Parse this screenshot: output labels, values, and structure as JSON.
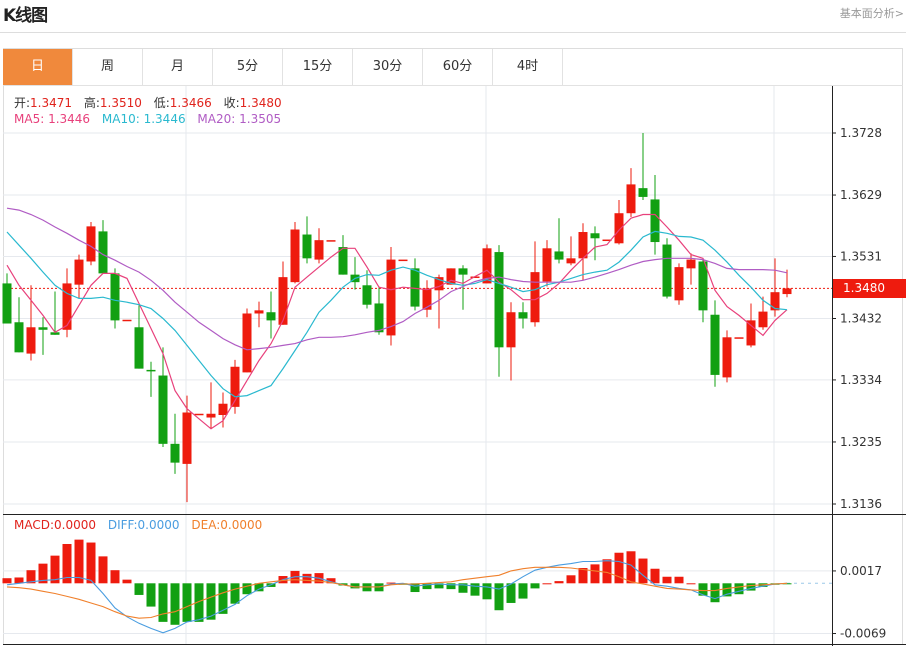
{
  "header": {
    "title": "K线图",
    "link": "基本面分析>"
  },
  "tabs": [
    {
      "label": "日",
      "active": true
    },
    {
      "label": "周"
    },
    {
      "label": "月"
    },
    {
      "label": "5分"
    },
    {
      "label": "15分"
    },
    {
      "label": "30分"
    },
    {
      "label": "60分"
    },
    {
      "label": "4时"
    }
  ],
  "legend": {
    "open_label": "开:",
    "open": "1.3471",
    "high_label": "高:",
    "high": "1.3510",
    "low_label": "低:",
    "low": "1.3466",
    "close_label": "收:",
    "close": "1.3480",
    "ma5_label": "MA5: ",
    "ma5": "1.3446",
    "ma10_label": "MA10: ",
    "ma10": "1.3446",
    "ma20_label": "MA20: ",
    "ma20": "1.3505"
  },
  "macd_legend": {
    "macd_label": "MACD:",
    "macd": "0.0000",
    "diff_label": "DIFF:",
    "diff": "0.0000",
    "dea_label": "DEA:",
    "dea": "0.0000"
  },
  "current_price": "1.3480",
  "colors": {
    "up": "#ee1b0e",
    "down": "#12a012",
    "ma5": "#e8417c",
    "ma10": "#2ab9cf",
    "ma20": "#b05cc4",
    "diff": "#4a9de0",
    "dea": "#f0802c",
    "active_tab": "#f0893c"
  },
  "chart_data": [
    {
      "type": "candlestick",
      "ylim": [
        1.3136,
        1.3728
      ],
      "yticks": [
        "1.3728",
        "1.3629",
        "1.3531",
        "1.3432",
        "1.3334",
        "1.3235",
        "1.3136"
      ],
      "grid": true,
      "ohlc": [
        [
          1.3488,
          1.3504,
          1.3424,
          1.3424
        ],
        [
          1.3426,
          1.3466,
          1.3378,
          1.3378
        ],
        [
          1.3376,
          1.3485,
          1.3365,
          1.3418
        ],
        [
          1.3418,
          1.3434,
          1.3374,
          1.3414
        ],
        [
          1.341,
          1.3475,
          1.3406,
          1.3406
        ],
        [
          1.3414,
          1.3512,
          1.3402,
          1.3488
        ],
        [
          1.3486,
          1.3534,
          1.3464,
          1.3526
        ],
        [
          1.3523,
          1.3586,
          1.3517,
          1.3579
        ],
        [
          1.3571,
          1.3589,
          1.3504,
          1.3504
        ],
        [
          1.3504,
          1.3512,
          1.3416,
          1.3429
        ],
        [
          1.343,
          1.343,
          1.343,
          1.343
        ],
        [
          1.3418,
          1.3453,
          1.3352,
          1.3352
        ],
        [
          1.335,
          1.3363,
          1.3307,
          1.3348
        ],
        [
          1.3341,
          1.3386,
          1.3227,
          1.3232
        ],
        [
          1.3232,
          1.328,
          1.3184,
          1.3202
        ],
        [
          1.32,
          1.3309,
          1.3139,
          1.3282
        ],
        [
          1.328,
          1.328,
          1.328,
          1.328
        ],
        [
          1.3274,
          1.333,
          1.3256,
          1.328
        ],
        [
          1.3278,
          1.3314,
          1.3258,
          1.3296
        ],
        [
          1.3291,
          1.3366,
          1.328,
          1.3355
        ],
        [
          1.3346,
          1.3448,
          1.3346,
          1.344
        ],
        [
          1.344,
          1.3459,
          1.3418,
          1.3445
        ],
        [
          1.3442,
          1.3475,
          1.34,
          1.3429
        ],
        [
          1.3422,
          1.3523,
          1.3422,
          1.3498
        ],
        [
          1.349,
          1.3586,
          1.3488,
          1.3574
        ],
        [
          1.3566,
          1.3595,
          1.352,
          1.3528
        ],
        [
          1.3526,
          1.3576,
          1.352,
          1.3557
        ],
        [
          1.3557,
          1.3557,
          1.3557,
          1.3557
        ],
        [
          1.3546,
          1.3565,
          1.3502,
          1.3502
        ],
        [
          1.3502,
          1.353,
          1.3478,
          1.349
        ],
        [
          1.3485,
          1.3509,
          1.3448,
          1.3454
        ],
        [
          1.3456,
          1.3483,
          1.3406,
          1.341
        ],
        [
          1.3405,
          1.3546,
          1.3389,
          1.3526
        ],
        [
          1.3526,
          1.3526,
          1.3526,
          1.3526
        ],
        [
          1.3512,
          1.3528,
          1.3445,
          1.3451
        ],
        [
          1.3446,
          1.3493,
          1.3434,
          1.348
        ],
        [
          1.3477,
          1.3502,
          1.3416,
          1.3498
        ],
        [
          1.3486,
          1.3512,
          1.3486,
          1.3512
        ],
        [
          1.3512,
          1.3517,
          1.3446,
          1.3502
        ],
        [
          1.3499,
          1.3499,
          1.3499,
          1.3499
        ],
        [
          1.3488,
          1.355,
          1.3488,
          1.3544
        ],
        [
          1.3538,
          1.3549,
          1.3339,
          1.3386
        ],
        [
          1.3386,
          1.3458,
          1.3333,
          1.3442
        ],
        [
          1.3442,
          1.3458,
          1.3416,
          1.3432
        ],
        [
          1.3426,
          1.3555,
          1.3419,
          1.3506
        ],
        [
          1.3491,
          1.3557,
          1.3483,
          1.3544
        ],
        [
          1.3539,
          1.3592,
          1.352,
          1.3526
        ],
        [
          1.352,
          1.3563,
          1.3517,
          1.3528
        ],
        [
          1.3528,
          1.3584,
          1.3493,
          1.357
        ],
        [
          1.3568,
          1.3579,
          1.3525,
          1.356
        ],
        [
          1.3558,
          1.3558,
          1.3558,
          1.3558
        ],
        [
          1.3552,
          1.3621,
          1.355,
          1.36
        ],
        [
          1.36,
          1.3672,
          1.3594,
          1.3646
        ],
        [
          1.364,
          1.3728,
          1.3621,
          1.3626
        ],
        [
          1.3622,
          1.3661,
          1.3534,
          1.3554
        ],
        [
          1.355,
          1.356,
          1.3464,
          1.3467
        ],
        [
          1.3461,
          1.352,
          1.3454,
          1.3514
        ],
        [
          1.3512,
          1.3536,
          1.3486,
          1.3526
        ],
        [
          1.3523,
          1.3528,
          1.3426,
          1.3445
        ],
        [
          1.3438,
          1.3461,
          1.3323,
          1.3342
        ],
        [
          1.3338,
          1.3413,
          1.333,
          1.3402
        ],
        [
          1.3402,
          1.3402,
          1.3402,
          1.3402
        ],
        [
          1.3389,
          1.3456,
          1.3386,
          1.3429
        ],
        [
          1.3418,
          1.3467,
          1.3414,
          1.3443
        ],
        [
          1.3445,
          1.3528,
          1.3435,
          1.3474
        ],
        [
          1.3471,
          1.351,
          1.3466,
          1.348
        ]
      ],
      "series": [
        {
          "name": "MA5",
          "values": [
            1.3517,
            1.3485,
            1.3461,
            1.3437,
            1.341,
            1.3421,
            1.3453,
            1.3485,
            1.3504,
            1.3504,
            1.3496,
            1.3456,
            1.3416,
            1.3376,
            1.3317,
            1.3288,
            1.3272,
            1.3256,
            1.3269,
            1.3301,
            1.3333,
            1.3365,
            1.3392,
            1.3429,
            1.3482,
            1.3498,
            1.3514,
            1.353,
            1.3544,
            1.3544,
            1.3514,
            1.3482,
            1.3478,
            1.3482,
            1.348,
            1.3478,
            1.3483,
            1.3493,
            1.3488,
            1.3499,
            1.3509,
            1.349,
            1.3478,
            1.3462,
            1.3462,
            1.3472,
            1.3488,
            1.3509,
            1.3528,
            1.3546,
            1.355,
            1.3573,
            1.3592,
            1.3598,
            1.3598,
            1.3578,
            1.3557,
            1.3534,
            1.3528,
            1.3477,
            1.3451,
            1.3437,
            1.3421,
            1.3405,
            1.3429,
            1.3446
          ]
        },
        {
          "name": "MA10",
          "values": [
            1.357,
            1.3549,
            1.3528,
            1.3506,
            1.3485,
            1.3472,
            1.3464,
            1.3464,
            1.3466,
            1.3461,
            1.3458,
            1.3454,
            1.3448,
            1.3432,
            1.3413,
            1.3389,
            1.3365,
            1.3341,
            1.332,
            1.3307,
            1.3309,
            1.3317,
            1.3325,
            1.3352,
            1.3381,
            1.341,
            1.3442,
            1.3461,
            1.3482,
            1.3496,
            1.3502,
            1.3501,
            1.3509,
            1.3514,
            1.3509,
            1.3501,
            1.3494,
            1.3488,
            1.3485,
            1.3488,
            1.3494,
            1.3488,
            1.3482,
            1.3475,
            1.3478,
            1.3486,
            1.349,
            1.3496,
            1.3502,
            1.3506,
            1.3509,
            1.3522,
            1.3541,
            1.3562,
            1.3571,
            1.3568,
            1.3563,
            1.3562,
            1.3557,
            1.3541,
            1.3522,
            1.3501,
            1.3482,
            1.3461,
            1.3448,
            1.3446
          ]
        },
        {
          "name": "MA20",
          "values": [
            1.3608,
            1.3605,
            1.3598,
            1.3589,
            1.3578,
            1.3568,
            1.3557,
            1.3547,
            1.3534,
            1.3525,
            1.3515,
            1.3506,
            1.3493,
            1.3477,
            1.3458,
            1.3442,
            1.3426,
            1.3413,
            1.34,
            1.339,
            1.3382,
            1.3384,
            1.3386,
            1.3389,
            1.3392,
            1.3398,
            1.3402,
            1.3402,
            1.3403,
            1.3406,
            1.341,
            1.3413,
            1.3419,
            1.3427,
            1.344,
            1.345,
            1.3461,
            1.3475,
            1.3483,
            1.3491,
            1.3496,
            1.3498,
            1.3494,
            1.3491,
            1.349,
            1.349,
            1.349,
            1.349,
            1.3493,
            1.3498,
            1.3504,
            1.351,
            1.3517,
            1.3523,
            1.3526,
            1.3528,
            1.3528,
            1.3528,
            1.3526,
            1.352,
            1.3512,
            1.351,
            1.351,
            1.351,
            1.3509,
            1.3505
          ]
        }
      ],
      "last_price": 1.348
    },
    {
      "type": "bar",
      "yticks": [
        "0.0017",
        "-0.0069"
      ],
      "grid": true,
      "macd": [
        0.0007,
        0.0008,
        0.0018,
        0.0027,
        0.0038,
        0.0054,
        0.006,
        0.0056,
        0.0037,
        0.0018,
        0.0005,
        -0.0016,
        -0.0032,
        -0.0053,
        -0.0057,
        -0.0053,
        -0.0053,
        -0.005,
        -0.0042,
        -0.0028,
        -0.0015,
        -0.0011,
        -0.0005,
        0.001,
        0.0017,
        0.0013,
        0.0014,
        0.0007,
        -0.0003,
        -0.0007,
        -0.0011,
        -0.0011,
        0.0001,
        -0.0002,
        -0.0012,
        -0.0008,
        -0.0007,
        -0.0008,
        -0.0013,
        -0.0017,
        -0.0022,
        -0.0037,
        -0.0027,
        -0.0021,
        -0.0007,
        0.0,
        0.0003,
        0.0011,
        0.0021,
        0.0026,
        0.0033,
        0.0042,
        0.0044,
        0.0034,
        0.002,
        0.0009,
        0.0009,
        0.0,
        -0.0017,
        -0.0026,
        -0.0018,
        -0.0015,
        -0.001,
        -0.0005,
        -0.0002,
        -0.0001
      ],
      "series": [
        {
          "name": "DIFF",
          "values": [
            -0.0002,
            0.0,
            0.0002,
            0.0004,
            0.0005,
            0.0008,
            0.0008,
            0.0004,
            -0.0014,
            -0.0034,
            -0.0046,
            -0.0055,
            -0.0062,
            -0.0068,
            -0.0062,
            -0.0053,
            -0.005,
            -0.0045,
            -0.0037,
            -0.0029,
            -0.0017,
            -0.0008,
            -0.0002,
            0.0005,
            0.0009,
            0.0009,
            0.0007,
            0.0002,
            -0.0002,
            -0.0005,
            -0.0005,
            -0.0005,
            -0.0001,
            0.0,
            -0.0004,
            -0.0002,
            -0.0001,
            -0.0002,
            -0.0002,
            -0.0004,
            -0.0005,
            -0.0008,
            -0.0001,
            0.0009,
            0.0018,
            0.0022,
            0.0025,
            0.0027,
            0.003,
            0.003,
            0.0031,
            0.003,
            0.0025,
            0.0011,
            -0.0002,
            -0.0004,
            -0.0007,
            -0.0009,
            -0.0016,
            -0.0021,
            -0.0015,
            -0.0011,
            -0.0007,
            -0.0004,
            -0.0001,
            0.0
          ]
        },
        {
          "name": "DEA",
          "values": [
            -0.0005,
            -0.0006,
            -0.0008,
            -0.0011,
            -0.0014,
            -0.0018,
            -0.0022,
            -0.0027,
            -0.0032,
            -0.0039,
            -0.0045,
            -0.0048,
            -0.0047,
            -0.0042,
            -0.0039,
            -0.0032,
            -0.0025,
            -0.0019,
            -0.0013,
            -0.0008,
            -0.0004,
            0.0,
            0.0002,
            0.0004,
            0.0005,
            0.0004,
            0.0003,
            0.0001,
            -0.0002,
            -0.0005,
            -0.0005,
            -0.0005,
            -0.0002,
            -0.0001,
            -0.0001,
            0.0,
            0.0001,
            0.0002,
            0.0005,
            0.0007,
            0.0009,
            0.0011,
            0.0017,
            0.002,
            0.0022,
            0.0022,
            0.0022,
            0.0021,
            0.0019,
            0.0017,
            0.0015,
            0.0009,
            0.0002,
            -0.0001,
            -0.0004,
            -0.0007,
            -0.0008,
            -0.0009,
            -0.001,
            -0.001,
            -0.0007,
            -0.0005,
            -0.0003,
            -0.0002,
            -0.0001,
            0.0
          ]
        }
      ]
    }
  ]
}
